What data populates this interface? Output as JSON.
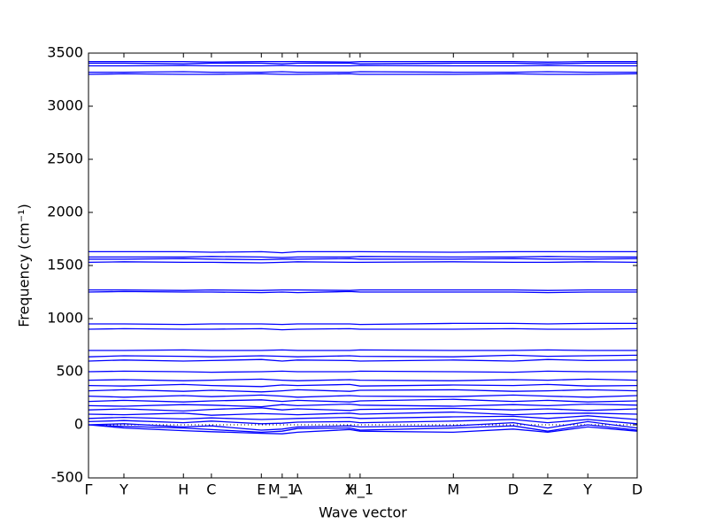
{
  "chart_data": {
    "type": "line",
    "ylabel": "Frequency (cm⁻¹)",
    "xlabel": "Wave vector",
    "x": [
      0,
      0.0645,
      0.173,
      0.224,
      0.315,
      0.353,
      0.381,
      0.476,
      0.495,
      0.665,
      0.774,
      0.837,
      0.91,
      1.0
    ],
    "xlim": [
      0,
      1.0
    ],
    "xticks": [
      {
        "value": 0,
        "label": "Γ"
      },
      {
        "value": 0.0645,
        "label": "Y"
      },
      {
        "value": 0.173,
        "label": "H"
      },
      {
        "value": 0.224,
        "label": "C"
      },
      {
        "value": 0.315,
        "label": "E"
      },
      {
        "value": 0.353,
        "label": "M_1"
      },
      {
        "value": 0.381,
        "label": "A"
      },
      {
        "value": 0.476,
        "label": "X"
      },
      {
        "value": 0.495,
        "label": "H_1"
      },
      {
        "value": 0.665,
        "label": "M"
      },
      {
        "value": 0.774,
        "label": "D"
      },
      {
        "value": 0.837,
        "label": "Z"
      },
      {
        "value": 0.91,
        "label": "Y"
      },
      {
        "value": 1.0,
        "label": "D"
      }
    ],
    "ylim": [
      -500,
      3500
    ],
    "yticks": [
      -500,
      0,
      500,
      1000,
      1500,
      2000,
      2500,
      3000,
      3500
    ],
    "zero_line": true,
    "series": [
      {
        "color": "#0000ff",
        "values": [
          0,
          -30,
          -55,
          -65,
          -80,
          -85,
          -70,
          -45,
          -60,
          -70,
          -40,
          -70,
          -20,
          -60
        ]
      },
      {
        "color": "#0000ff",
        "values": [
          0,
          -15,
          -30,
          -45,
          -70,
          -60,
          -35,
          -30,
          -50,
          -30,
          -10,
          -60,
          0,
          -50
        ]
      },
      {
        "color": "#0000ff",
        "values": [
          0,
          10,
          -20,
          -10,
          -50,
          -40,
          -20,
          -10,
          -20,
          -10,
          20,
          -30,
          30,
          -30
        ]
      },
      {
        "color": "#0000ff",
        "values": [
          30,
          40,
          20,
          35,
          10,
          15,
          25,
          30,
          20,
          35,
          50,
          20,
          50,
          10
        ]
      },
      {
        "color": "#0000ff",
        "values": [
          60,
          70,
          55,
          65,
          50,
          55,
          60,
          70,
          60,
          75,
          80,
          60,
          85,
          50
        ]
      },
      {
        "color": "#0000ff",
        "values": [
          100,
          95,
          110,
          90,
          105,
          100,
          95,
          110,
          100,
          120,
          95,
          105,
          110,
          100
        ]
      },
      {
        "color": "#0000ff",
        "values": [
          140,
          150,
          130,
          145,
          160,
          140,
          150,
          135,
          145,
          155,
          140,
          150,
          135,
          150
        ]
      },
      {
        "color": "#0000ff",
        "values": [
          180,
          175,
          190,
          185,
          170,
          190,
          180,
          195,
          185,
          175,
          190,
          180,
          195,
          185
        ]
      },
      {
        "color": "#0000ff",
        "values": [
          220,
          230,
          215,
          225,
          235,
          220,
          230,
          215,
          225,
          240,
          220,
          230,
          215,
          225
        ]
      },
      {
        "color": "#0000ff",
        "values": [
          270,
          260,
          275,
          265,
          280,
          270,
          260,
          275,
          270,
          265,
          280,
          270,
          260,
          275
        ]
      },
      {
        "color": "#0000ff",
        "values": [
          320,
          330,
          315,
          325,
          310,
          320,
          330,
          315,
          325,
          330,
          315,
          320,
          330,
          320
        ]
      },
      {
        "color": "#0000ff",
        "values": [
          370,
          365,
          380,
          370,
          360,
          375,
          370,
          380,
          365,
          375,
          370,
          380,
          365,
          370
        ]
      },
      {
        "color": "#0000ff",
        "values": [
          420,
          425,
          415,
          420,
          430,
          420,
          415,
          425,
          420,
          415,
          425,
          420,
          430,
          420
        ]
      },
      {
        "color": "#0000ff",
        "values": [
          500,
          505,
          500,
          495,
          500,
          505,
          500,
          500,
          505,
          500,
          495,
          505,
          500,
          500
        ]
      },
      {
        "color": "#0000ff",
        "values": [
          600,
          610,
          600,
          605,
          615,
          600,
          610,
          605,
          600,
          610,
          600,
          615,
          605,
          610
        ]
      },
      {
        "color": "#0000ff",
        "values": [
          640,
          650,
          645,
          640,
          650,
          645,
          640,
          650,
          645,
          640,
          655,
          645,
          650,
          655
        ]
      },
      {
        "color": "#0000ff",
        "values": [
          700,
          700,
          705,
          700,
          700,
          705,
          700,
          700,
          705,
          700,
          700,
          705,
          700,
          700
        ]
      },
      {
        "color": "#0000ff",
        "values": [
          900,
          905,
          900,
          900,
          905,
          895,
          900,
          905,
          900,
          900,
          905,
          900,
          900,
          905
        ]
      },
      {
        "color": "#0000ff",
        "values": [
          950,
          950,
          945,
          950,
          950,
          945,
          950,
          950,
          945,
          955,
          955,
          950,
          955,
          955
        ]
      },
      {
        "color": "#0000ff",
        "values": [
          1250,
          1255,
          1250,
          1250,
          1245,
          1250,
          1245,
          1255,
          1250,
          1250,
          1250,
          1245,
          1250,
          1250
        ]
      },
      {
        "color": "#0000ff",
        "values": [
          1270,
          1270,
          1265,
          1270,
          1265,
          1270,
          1270,
          1265,
          1270,
          1270,
          1270,
          1265,
          1270,
          1270
        ]
      },
      {
        "color": "#0000ff",
        "values": [
          1530,
          1535,
          1530,
          1530,
          1525,
          1530,
          1535,
          1530,
          1530,
          1535,
          1530,
          1530,
          1535,
          1530
        ]
      },
      {
        "color": "#0000ff",
        "values": [
          1560,
          1560,
          1565,
          1560,
          1555,
          1560,
          1560,
          1565,
          1560,
          1560,
          1565,
          1560,
          1560,
          1565
        ]
      },
      {
        "color": "#0000ff",
        "values": [
          1580,
          1580,
          1580,
          1585,
          1580,
          1575,
          1580,
          1580,
          1585,
          1580,
          1580,
          1585,
          1580,
          1580
        ]
      },
      {
        "color": "#0000ff",
        "values": [
          1630,
          1630,
          1630,
          1625,
          1630,
          1620,
          1630,
          1630,
          1630,
          1625,
          1630,
          1630,
          1630,
          1630
        ]
      },
      {
        "color": "#0000ff",
        "values": [
          3300,
          3305,
          3300,
          3300,
          3305,
          3300,
          3300,
          3305,
          3300,
          3300,
          3305,
          3300,
          3300,
          3305
        ]
      },
      {
        "color": "#0000ff",
        "values": [
          3320,
          3320,
          3325,
          3320,
          3320,
          3325,
          3320,
          3320,
          3325,
          3320,
          3320,
          3325,
          3320,
          3320
        ]
      },
      {
        "color": "#0000ff",
        "values": [
          3380,
          3380,
          3385,
          3380,
          3380,
          3385,
          3380,
          3380,
          3385,
          3380,
          3380,
          3385,
          3380,
          3380
        ]
      },
      {
        "color": "#0000ff",
        "values": [
          3405,
          3405,
          3400,
          3405,
          3405,
          3400,
          3405,
          3405,
          3400,
          3405,
          3405,
          3400,
          3405,
          3405
        ]
      },
      {
        "color": "#0000ff",
        "values": [
          3420,
          3420,
          3420,
          3415,
          3420,
          3420,
          3420,
          3415,
          3420,
          3420,
          3420,
          3415,
          3420,
          3420
        ]
      }
    ]
  }
}
